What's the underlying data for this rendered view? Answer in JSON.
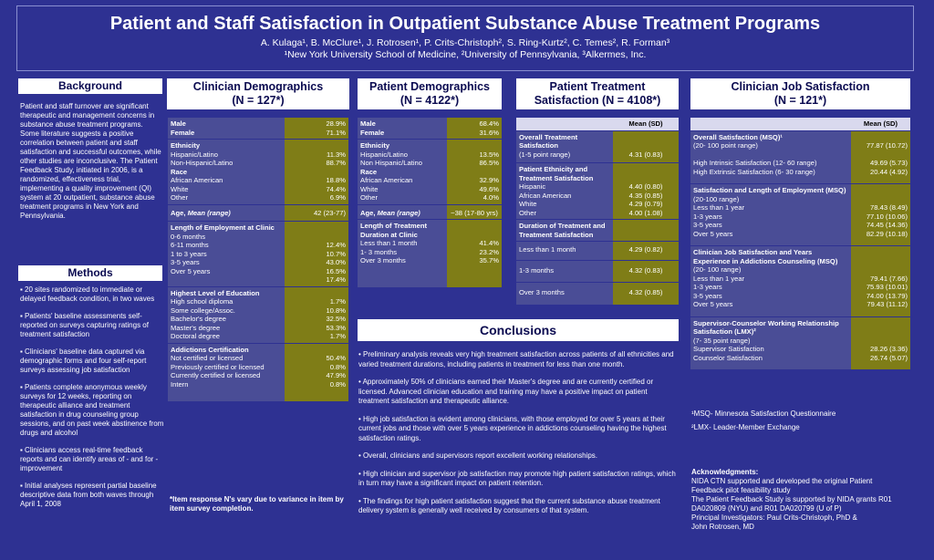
{
  "header": {
    "title": "Patient and Staff Satisfaction in Outpatient Substance Abuse Treatment Programs",
    "authors": "A. Kulaga¹, B. McClure¹, J. Rotrosen¹, P. Crits-Christoph², S. Ring-Kurtz², C. Temes², R. Forman³",
    "affiliations": "¹New York University School of Medicine, ²University of Pennsylvania, ³Alkermes, Inc."
  },
  "background": {
    "heading": "Background",
    "text": "Patient and staff turnover are significant therapeutic and management concerns in substance abuse treatment programs.  Some literature suggests a positive correlation between patient and staff satisfaction and successful outcomes, while other studies are inconclusive.  The Patient Feedback Study, initiated in 2006, is a randomized, effectiveness trial, implementing a quality improvement (QI) system at 20 outpatient, substance abuse treatment programs in New York and Pennsylvania."
  },
  "methods": {
    "heading": "Methods",
    "items": [
      "▪ 20 sites randomized to immediate or delayed feedback condition, in two waves",
      "▪ Patients' baseline assessments self-reported on surveys capturing ratings of treatment satisfaction",
      "▪ Clinicians' baseline data captured via demographic forms and four self-report surveys assessing job satisfaction",
      "▪ Patients complete anonymous weekly surveys for 12 weeks, reporting on therapeutic alliance and treatment satisfaction in drug counseling group sessions, and on past week abstinence from drugs and alcohol",
      "▪ Clinicians access real-time feedback reports and can identify areas of - and for - improvement",
      "▪ Initial analyses represent partial baseline descriptive data from both waves through April 1, 2008"
    ]
  },
  "clin_demo": {
    "heading1": "Clinician Demographics",
    "heading2": "(N = 127*)",
    "male": "Male",
    "male_v": "28.9%",
    "female": "Female",
    "female_v": "71.1%",
    "eth": "Ethnicity",
    "hisp": "Hispanic/Latino",
    "hisp_v": "11.3%",
    "nonhisp": "Non-Hispanic/Latino",
    "nonhisp_v": "88.7%",
    "race": "Race",
    "aa": "African American",
    "aa_v": "18.8%",
    "white": "White",
    "white_v": "74.4%",
    "other": "Other",
    "other_v": "6.9%",
    "age": "Age, ",
    "age_i": "Mean (range)",
    "age_v": "42 (23-77)",
    "loe": "Length of Employment at Clinic",
    "l1": "0-6 months",
    "l1v": "12.4%",
    "l2": "6-11 months",
    "l2v": "10.7%",
    "l3": "1 to 3 years",
    "l3v": "43.0%",
    "l4": "3-5 years",
    "l4v": "16.5%",
    "l5": "Over 5 years",
    "l5v": "17.4%",
    "edu": "Highest Level of Education",
    "e1": "High school diploma",
    "e1v": "1.7%",
    "e2": "Some college/Assoc.",
    "e2v": "10.8%",
    "e3": "Bachelor's degree",
    "e3v": "32.5%",
    "e4": "Master's degree",
    "e4v": "53.3%",
    "e5": "Doctoral degree",
    "e5v": "1.7%",
    "add": "Addictions Certification",
    "a1": "Not certified or licensed",
    "a1v": "50.4%",
    "a2": "Previously certified or licensed",
    "a2v": "0.8%",
    "a3": "Currently certified or licensed",
    "a3v": "47.9%",
    "a4": "Intern",
    "a4v": "0.8%",
    "note": "*Item response N's vary due to variance in item by item survey completion."
  },
  "pat_demo": {
    "heading1": "Patient Demographics",
    "heading2": "(N = 4122*)",
    "male": "Male",
    "male_v": "68.4%",
    "female": "Female",
    "female_v": "31.6%",
    "eth": "Ethnicity",
    "hisp": "Hispanic/Latino",
    "hisp_v": "13.5%",
    "nonhisp": "Non Hispanic/Latino",
    "nonhisp_v": "86.5%",
    "race": "Race",
    "aa": "African American",
    "aa_v": "32.9%",
    "white": "White",
    "white_v": "49.6%",
    "other": "Other",
    "other_v": "4.0%",
    "age": "Age, ",
    "age_i": "Mean (range)",
    "age_v": "~38 (17-80 yrs)",
    "ltd": "Length of Treatment Duration at Clinic",
    "t1": "Less than 1 month",
    "t1v": "41.4%",
    "t2": "1- 3 months",
    "t2v": "23.2%",
    "t3": "Over 3 months",
    "t3v": "35.7%"
  },
  "pat_treat": {
    "heading1": "Patient Treatment",
    "heading2": "Satisfaction (N = 4108*)",
    "mean_h": "Mean (SD)",
    "ots": "Overall Treatment Satisfaction",
    "ots_sub": "(1-5 point range)",
    "ots_v": "4.31 (0.83)",
    "pe": "Patient Ethnicity and Treatment Satisfaction",
    "h": "Hispanic",
    "hv": "4.40  (0.80)",
    "aa": "African American",
    "aav": "4.35  (0.85)",
    "w": "White",
    "wv": "4.29  (0.79)",
    "o": "Other",
    "ov": "4.00  (1.08)",
    "dur": "Duration of Treatment and Treatment Satisfaction",
    "d1": "Less than 1 month",
    "d1v": "4.29  (0.82)",
    "d2": "1-3 months",
    "d2v": "4.32  (0.83)",
    "d3": "Over 3 months",
    "d3v": "4.32 (0.85)"
  },
  "conclusions": {
    "heading": "Conclusions",
    "items": [
      "• Preliminary analysis reveals very high treatment satisfaction across patients of all ethnicities and varied treatment durations, including patients in treatment for less than one month.",
      "• Approximately 50% of clinicians earned their Master's degree and are currently certified or licensed.  Advanced clinician education and training may have a positive impact on patient treatment satisfaction and therapeutic alliance.",
      "• High job satisfaction is evident among clinicians, with those employed for over 5 years at their current jobs and those with over 5 years experience in addictions counseling having the highest satisfaction ratings.",
      "• Overall, clinicians and supervisors report excellent working relationships.",
      "• High clinician and supervisor job satisfaction may promote high patient satisfaction ratings, which in turn may have a significant impact on patient retention.",
      "• The findings for high patient satisfaction suggest that the current substance abuse treatment delivery system is generally well received by consumers of that system."
    ]
  },
  "clin_job": {
    "heading1": "Clinician Job Satisfaction",
    "heading2": "(N = 121*)",
    "mean_h": "Mean  (SD)",
    "ov": "Overall Satisfaction (MSQ)¹",
    "ov_sub": "(20- 100 point range)",
    "ov_v": "77.87 (10.72)",
    "hi": "High Intrinsic Satisfaction (12- 60 range)",
    "hi_v": "49.69  (5.73)",
    "he": "High Extrinsic Satisfaction (6- 30 range)",
    "he_v": "20.44  (4.92)",
    "sl": "Satisfaction and Length of Employment (MSQ)",
    "sl_sub": " (20-100 range)",
    "s1": "Less than 1 year",
    "s1v": "78.43  (8.49)",
    "s2": "1-3 years",
    "s2v": "77.10  (10.06)",
    "s3": "3-5 years",
    "s3v": "74.45  (14.36)",
    "s4": "Over 5 years",
    "s4v": "82.29  (10.18)",
    "cj": "Clinician Job Satisfaction and Years Experience in Addictions Counseling (MSQ)",
    "cj_sub": " (20- 100 range)",
    "c1": "Less than 1 year",
    "c1v": "79.41  (7.66)",
    "c2": "1-3 years",
    "c2v": "75.93  (10.01)",
    "c3": "3-5 years",
    "c3v": "74.00  (13.79)",
    "c4": "Over 5 years",
    "c4v": "79.43  (11.12)",
    "sc": "Supervisor-Counselor Working Relationship Satisfaction (LMX)²",
    "sc_sub": "(7- 35 point range)",
    "sc1": "Supervisor Satisfaction",
    "sc1v": "28.26  (3.36)",
    "sc2": "Counselor Satisfaction",
    "sc2v": "26.74  (5.07)",
    "fn1": "¹MSQ- Minnesota Satisfaction Questionnaire",
    "fn2": "²LMX- Leader-Member Exchange"
  },
  "ack": {
    "heading": "Acknowledgments:",
    "lines": [
      "NIDA CTN supported and developed the original Patient Feedback pilot feasibility study",
      "The Patient Feedback Study is supported by NIDA grants R01 DA020809 (NYU) and R01 DA020799 (U of P)",
      "Principal Investigators: Paul Crits-Christoph, PhD &",
      "John Rotrosen, MD"
    ]
  }
}
